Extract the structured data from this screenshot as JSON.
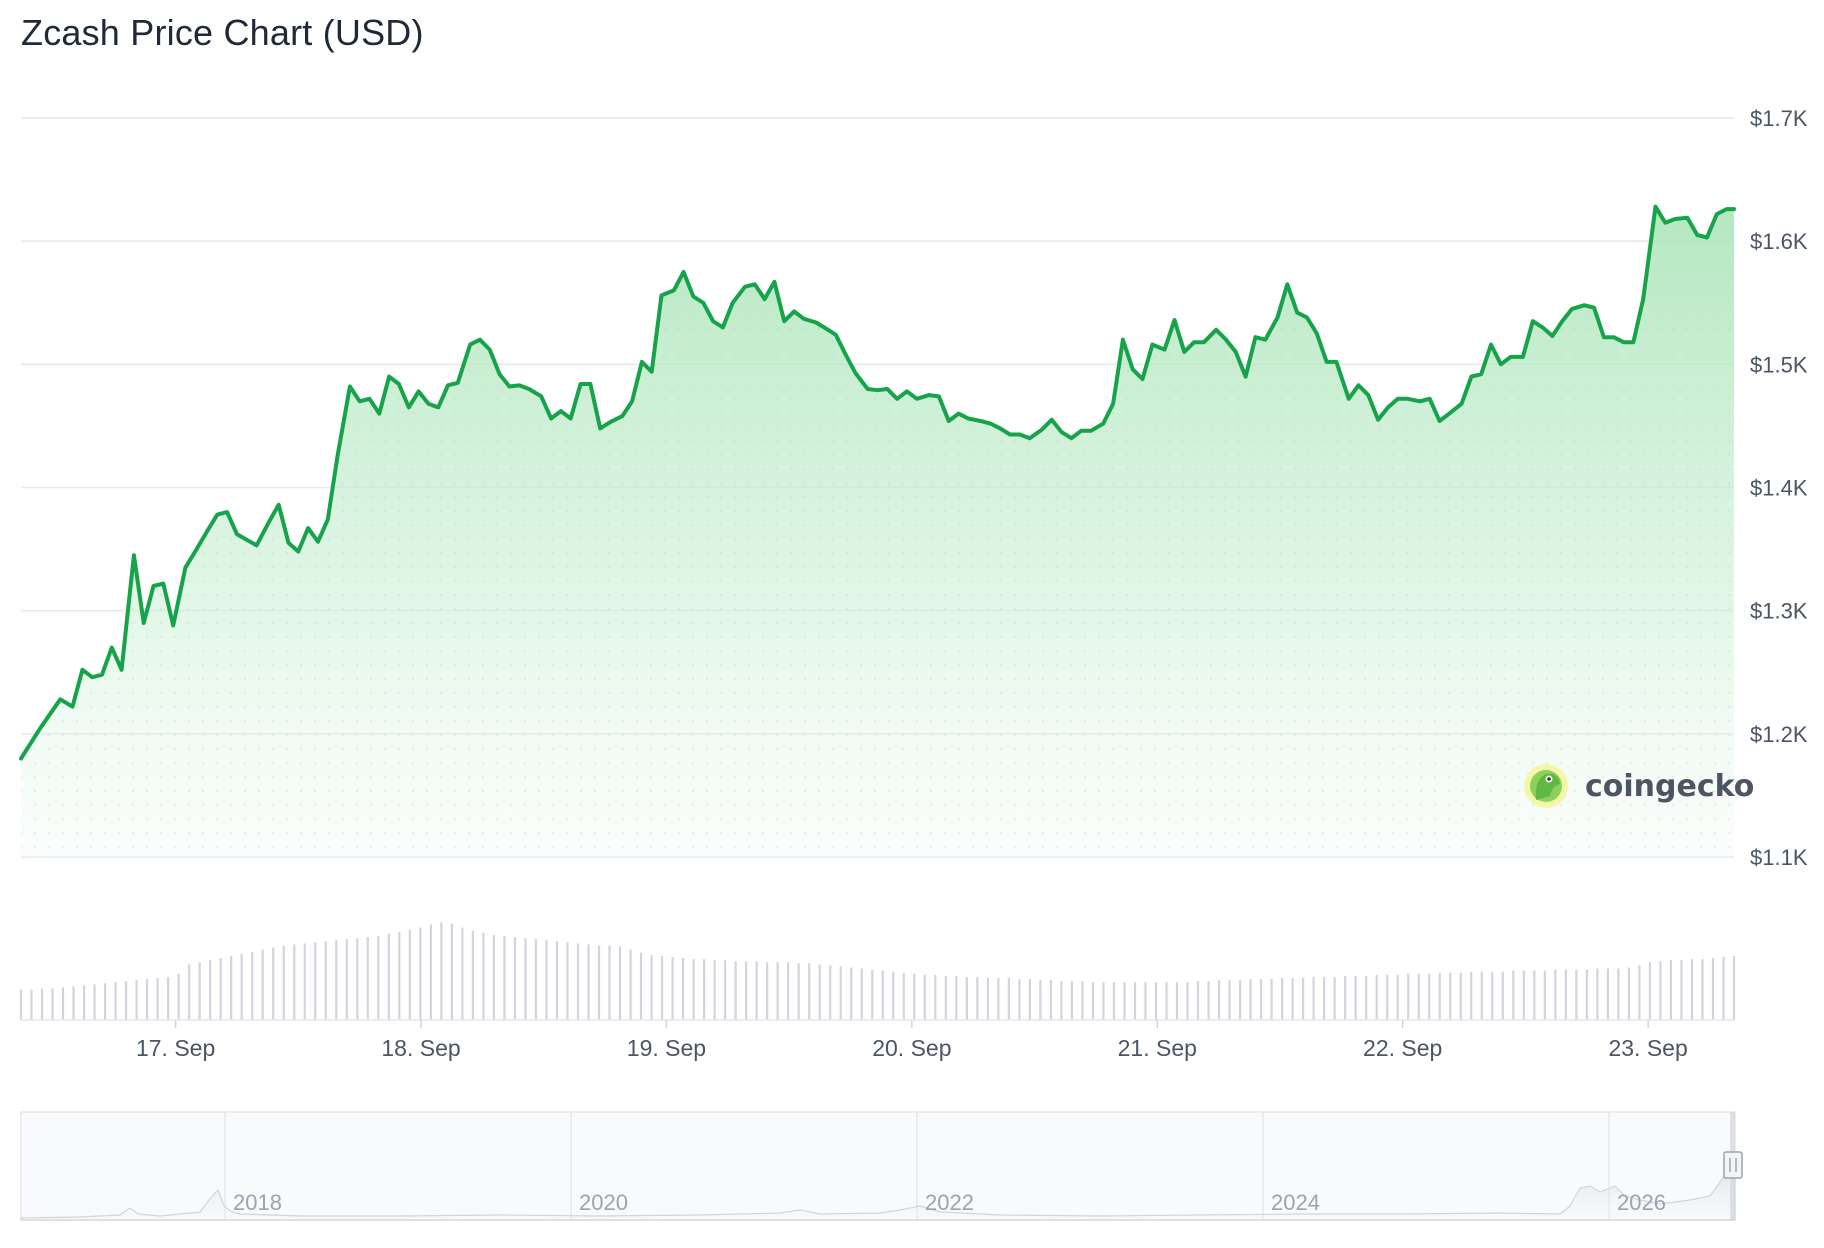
{
  "title": "Zcash Price Chart (USD)",
  "watermark": "coingecko",
  "colors": {
    "line": "#16a34a",
    "fill": "#bbe8c6",
    "grid": "#e5e7eb",
    "volume": "#d1d5db"
  },
  "chart_data": {
    "type": "area",
    "title": "Zcash Price Chart (USD)",
    "xlabel": "",
    "ylabel": "",
    "ylim": [
      1100,
      1700
    ],
    "xlim": [
      -0.63,
      6.35
    ],
    "x_unit": "days since 17. Sep",
    "yticks": [
      {
        "value": 1700,
        "label": "$1.7K"
      },
      {
        "value": 1600,
        "label": "$1.6K"
      },
      {
        "value": 1500,
        "label": "$1.5K"
      },
      {
        "value": 1400,
        "label": "$1.4K"
      },
      {
        "value": 1300,
        "label": "$1.3K"
      },
      {
        "value": 1200,
        "label": "$1.2K"
      },
      {
        "value": 1100,
        "label": "$1.1K"
      }
    ],
    "xticks": [
      {
        "value": 0,
        "label": "17. Sep"
      },
      {
        "value": 1,
        "label": "18. Sep"
      },
      {
        "value": 2,
        "label": "19. Sep"
      },
      {
        "value": 3,
        "label": "20. Sep"
      },
      {
        "value": 4,
        "label": "21. Sep"
      },
      {
        "value": 5,
        "label": "22. Sep"
      },
      {
        "value": 6,
        "label": "23. Sep"
      }
    ],
    "series": [
      {
        "name": "Price",
        "points": [
          [
            -0.63,
            1180
          ],
          [
            -0.55,
            1205
          ],
          [
            -0.47,
            1228
          ],
          [
            -0.42,
            1222
          ],
          [
            -0.38,
            1252
          ],
          [
            -0.34,
            1246
          ],
          [
            -0.3,
            1248
          ],
          [
            -0.26,
            1270
          ],
          [
            -0.22,
            1252
          ],
          [
            -0.17,
            1345
          ],
          [
            -0.13,
            1290
          ],
          [
            -0.09,
            1320
          ],
          [
            -0.05,
            1322
          ],
          [
            -0.01,
            1288
          ],
          [
            0.04,
            1335
          ],
          [
            0.08,
            1348
          ],
          [
            0.13,
            1365
          ],
          [
            0.17,
            1378
          ],
          [
            0.21,
            1380
          ],
          [
            0.25,
            1362
          ],
          [
            0.33,
            1353
          ],
          [
            0.38,
            1372
          ],
          [
            0.42,
            1386
          ],
          [
            0.46,
            1355
          ],
          [
            0.5,
            1348
          ],
          [
            0.54,
            1367
          ],
          [
            0.58,
            1356
          ],
          [
            0.62,
            1374
          ],
          [
            0.66,
            1426
          ],
          [
            0.71,
            1482
          ],
          [
            0.75,
            1470
          ],
          [
            0.79,
            1472
          ],
          [
            0.83,
            1460
          ],
          [
            0.87,
            1490
          ],
          [
            0.91,
            1484
          ],
          [
            0.95,
            1465
          ],
          [
            0.99,
            1478
          ],
          [
            1.03,
            1468
          ],
          [
            1.07,
            1465
          ],
          [
            1.11,
            1483
          ],
          [
            1.15,
            1485
          ],
          [
            1.2,
            1516
          ],
          [
            1.24,
            1520
          ],
          [
            1.28,
            1512
          ],
          [
            1.32,
            1492
          ],
          [
            1.36,
            1482
          ],
          [
            1.4,
            1483
          ],
          [
            1.44,
            1480
          ],
          [
            1.49,
            1474
          ],
          [
            1.53,
            1456
          ],
          [
            1.57,
            1462
          ],
          [
            1.61,
            1456
          ],
          [
            1.65,
            1484
          ],
          [
            1.69,
            1484
          ],
          [
            1.73,
            1448
          ],
          [
            1.77,
            1453
          ],
          [
            1.82,
            1458
          ],
          [
            1.86,
            1470
          ],
          [
            1.9,
            1502
          ],
          [
            1.94,
            1494
          ],
          [
            1.98,
            1556
          ],
          [
            2.03,
            1560
          ],
          [
            2.07,
            1575
          ],
          [
            2.11,
            1555
          ],
          [
            2.15,
            1550
          ],
          [
            2.19,
            1535
          ],
          [
            2.23,
            1530
          ],
          [
            2.27,
            1550
          ],
          [
            2.32,
            1563
          ],
          [
            2.36,
            1565
          ],
          [
            2.4,
            1553
          ],
          [
            2.44,
            1567
          ],
          [
            2.48,
            1535
          ],
          [
            2.52,
            1543
          ],
          [
            2.56,
            1537
          ],
          [
            2.61,
            1534
          ],
          [
            2.65,
            1529
          ],
          [
            2.69,
            1524
          ],
          [
            2.73,
            1508
          ],
          [
            2.77,
            1493
          ],
          [
            2.82,
            1480
          ],
          [
            2.86,
            1479
          ],
          [
            2.9,
            1480
          ],
          [
            2.94,
            1472
          ],
          [
            2.98,
            1478
          ],
          [
            3.02,
            1472
          ],
          [
            3.07,
            1475
          ],
          [
            3.11,
            1474
          ],
          [
            3.15,
            1454
          ],
          [
            3.19,
            1460
          ],
          [
            3.23,
            1456
          ],
          [
            3.28,
            1454
          ],
          [
            3.32,
            1452
          ],
          [
            3.36,
            1448
          ],
          [
            3.4,
            1443
          ],
          [
            3.44,
            1443
          ],
          [
            3.48,
            1440
          ],
          [
            3.53,
            1447
          ],
          [
            3.57,
            1455
          ],
          [
            3.61,
            1445
          ],
          [
            3.65,
            1440
          ],
          [
            3.69,
            1446
          ],
          [
            3.73,
            1446
          ],
          [
            3.78,
            1452
          ],
          [
            3.82,
            1468
          ],
          [
            3.86,
            1520
          ],
          [
            3.9,
            1496
          ],
          [
            3.94,
            1488
          ],
          [
            3.98,
            1516
          ],
          [
            4.03,
            1512
          ],
          [
            4.07,
            1536
          ],
          [
            4.11,
            1510
          ],
          [
            4.15,
            1518
          ],
          [
            4.19,
            1518
          ],
          [
            4.24,
            1528
          ],
          [
            4.28,
            1520
          ],
          [
            4.32,
            1510
          ],
          [
            4.36,
            1490
          ],
          [
            4.4,
            1522
          ],
          [
            4.44,
            1520
          ],
          [
            4.49,
            1538
          ],
          [
            4.53,
            1565
          ],
          [
            4.57,
            1542
          ],
          [
            4.61,
            1538
          ],
          [
            4.65,
            1525
          ],
          [
            4.69,
            1502
          ],
          [
            4.73,
            1502
          ],
          [
            4.78,
            1472
          ],
          [
            4.82,
            1483
          ],
          [
            4.86,
            1475
          ],
          [
            4.9,
            1455
          ],
          [
            4.94,
            1465
          ],
          [
            4.98,
            1472
          ],
          [
            5.02,
            1472
          ],
          [
            5.07,
            1470
          ],
          [
            5.11,
            1472
          ],
          [
            5.15,
            1454
          ],
          [
            5.19,
            1460
          ],
          [
            5.24,
            1468
          ],
          [
            5.28,
            1490
          ],
          [
            5.32,
            1492
          ],
          [
            5.36,
            1516
          ],
          [
            5.4,
            1500
          ],
          [
            5.44,
            1506
          ],
          [
            5.49,
            1506
          ],
          [
            5.53,
            1535
          ],
          [
            5.57,
            1530
          ],
          [
            5.61,
            1523
          ],
          [
            5.65,
            1535
          ],
          [
            5.69,
            1545
          ],
          [
            5.74,
            1548
          ],
          [
            5.78,
            1546
          ],
          [
            5.82,
            1522
          ],
          [
            5.86,
            1522
          ],
          [
            5.9,
            1518
          ],
          [
            5.94,
            1518
          ],
          [
            5.98,
            1553
          ],
          [
            6.03,
            1628
          ],
          [
            6.07,
            1615
          ],
          [
            6.11,
            1618
          ],
          [
            6.16,
            1619
          ],
          [
            6.2,
            1605
          ],
          [
            6.24,
            1603
          ],
          [
            6.28,
            1622
          ],
          [
            6.32,
            1626
          ],
          [
            6.35,
            1626
          ]
        ]
      }
    ],
    "volume": {
      "x_start": -0.63,
      "x_end": 6.35,
      "values": [
        0.29,
        0.29,
        0.3,
        0.3,
        0.31,
        0.32,
        0.33,
        0.34,
        0.35,
        0.36,
        0.37,
        0.38,
        0.39,
        0.4,
        0.41,
        0.44,
        0.53,
        0.55,
        0.57,
        0.59,
        0.61,
        0.63,
        0.65,
        0.67,
        0.69,
        0.71,
        0.72,
        0.73,
        0.74,
        0.75,
        0.76,
        0.77,
        0.78,
        0.79,
        0.8,
        0.82,
        0.84,
        0.86,
        0.88,
        0.91,
        0.93,
        0.92,
        0.88,
        0.85,
        0.83,
        0.81,
        0.8,
        0.79,
        0.78,
        0.77,
        0.76,
        0.75,
        0.74,
        0.73,
        0.72,
        0.71,
        0.71,
        0.7,
        0.67,
        0.64,
        0.62,
        0.61,
        0.6,
        0.59,
        0.58,
        0.58,
        0.57,
        0.57,
        0.56,
        0.56,
        0.56,
        0.55,
        0.55,
        0.55,
        0.54,
        0.54,
        0.53,
        0.52,
        0.51,
        0.5,
        0.49,
        0.48,
        0.47,
        0.46,
        0.45,
        0.44,
        0.43,
        0.43,
        0.42,
        0.42,
        0.41,
        0.41,
        0.4,
        0.4,
        0.4,
        0.39,
        0.39,
        0.38,
        0.38,
        0.37,
        0.37,
        0.37,
        0.36,
        0.36,
        0.36,
        0.36,
        0.36,
        0.36,
        0.36,
        0.36,
        0.36,
        0.36,
        0.37,
        0.37,
        0.38,
        0.38,
        0.38,
        0.39,
        0.39,
        0.39,
        0.4,
        0.4,
        0.4,
        0.41,
        0.41,
        0.41,
        0.42,
        0.42,
        0.42,
        0.43,
        0.43,
        0.43,
        0.44,
        0.44,
        0.44,
        0.45,
        0.45,
        0.45,
        0.46,
        0.46,
        0.46,
        0.46,
        0.47,
        0.47,
        0.47,
        0.47,
        0.48,
        0.48,
        0.48,
        0.48,
        0.49,
        0.49,
        0.49,
        0.5,
        0.52,
        0.55,
        0.56,
        0.57,
        0.57,
        0.58,
        0.58,
        0.59,
        0.6,
        0.61
      ]
    },
    "navigator": {
      "ticks": [
        "2018",
        "2020",
        "2022",
        "2024",
        "2026"
      ]
    }
  }
}
